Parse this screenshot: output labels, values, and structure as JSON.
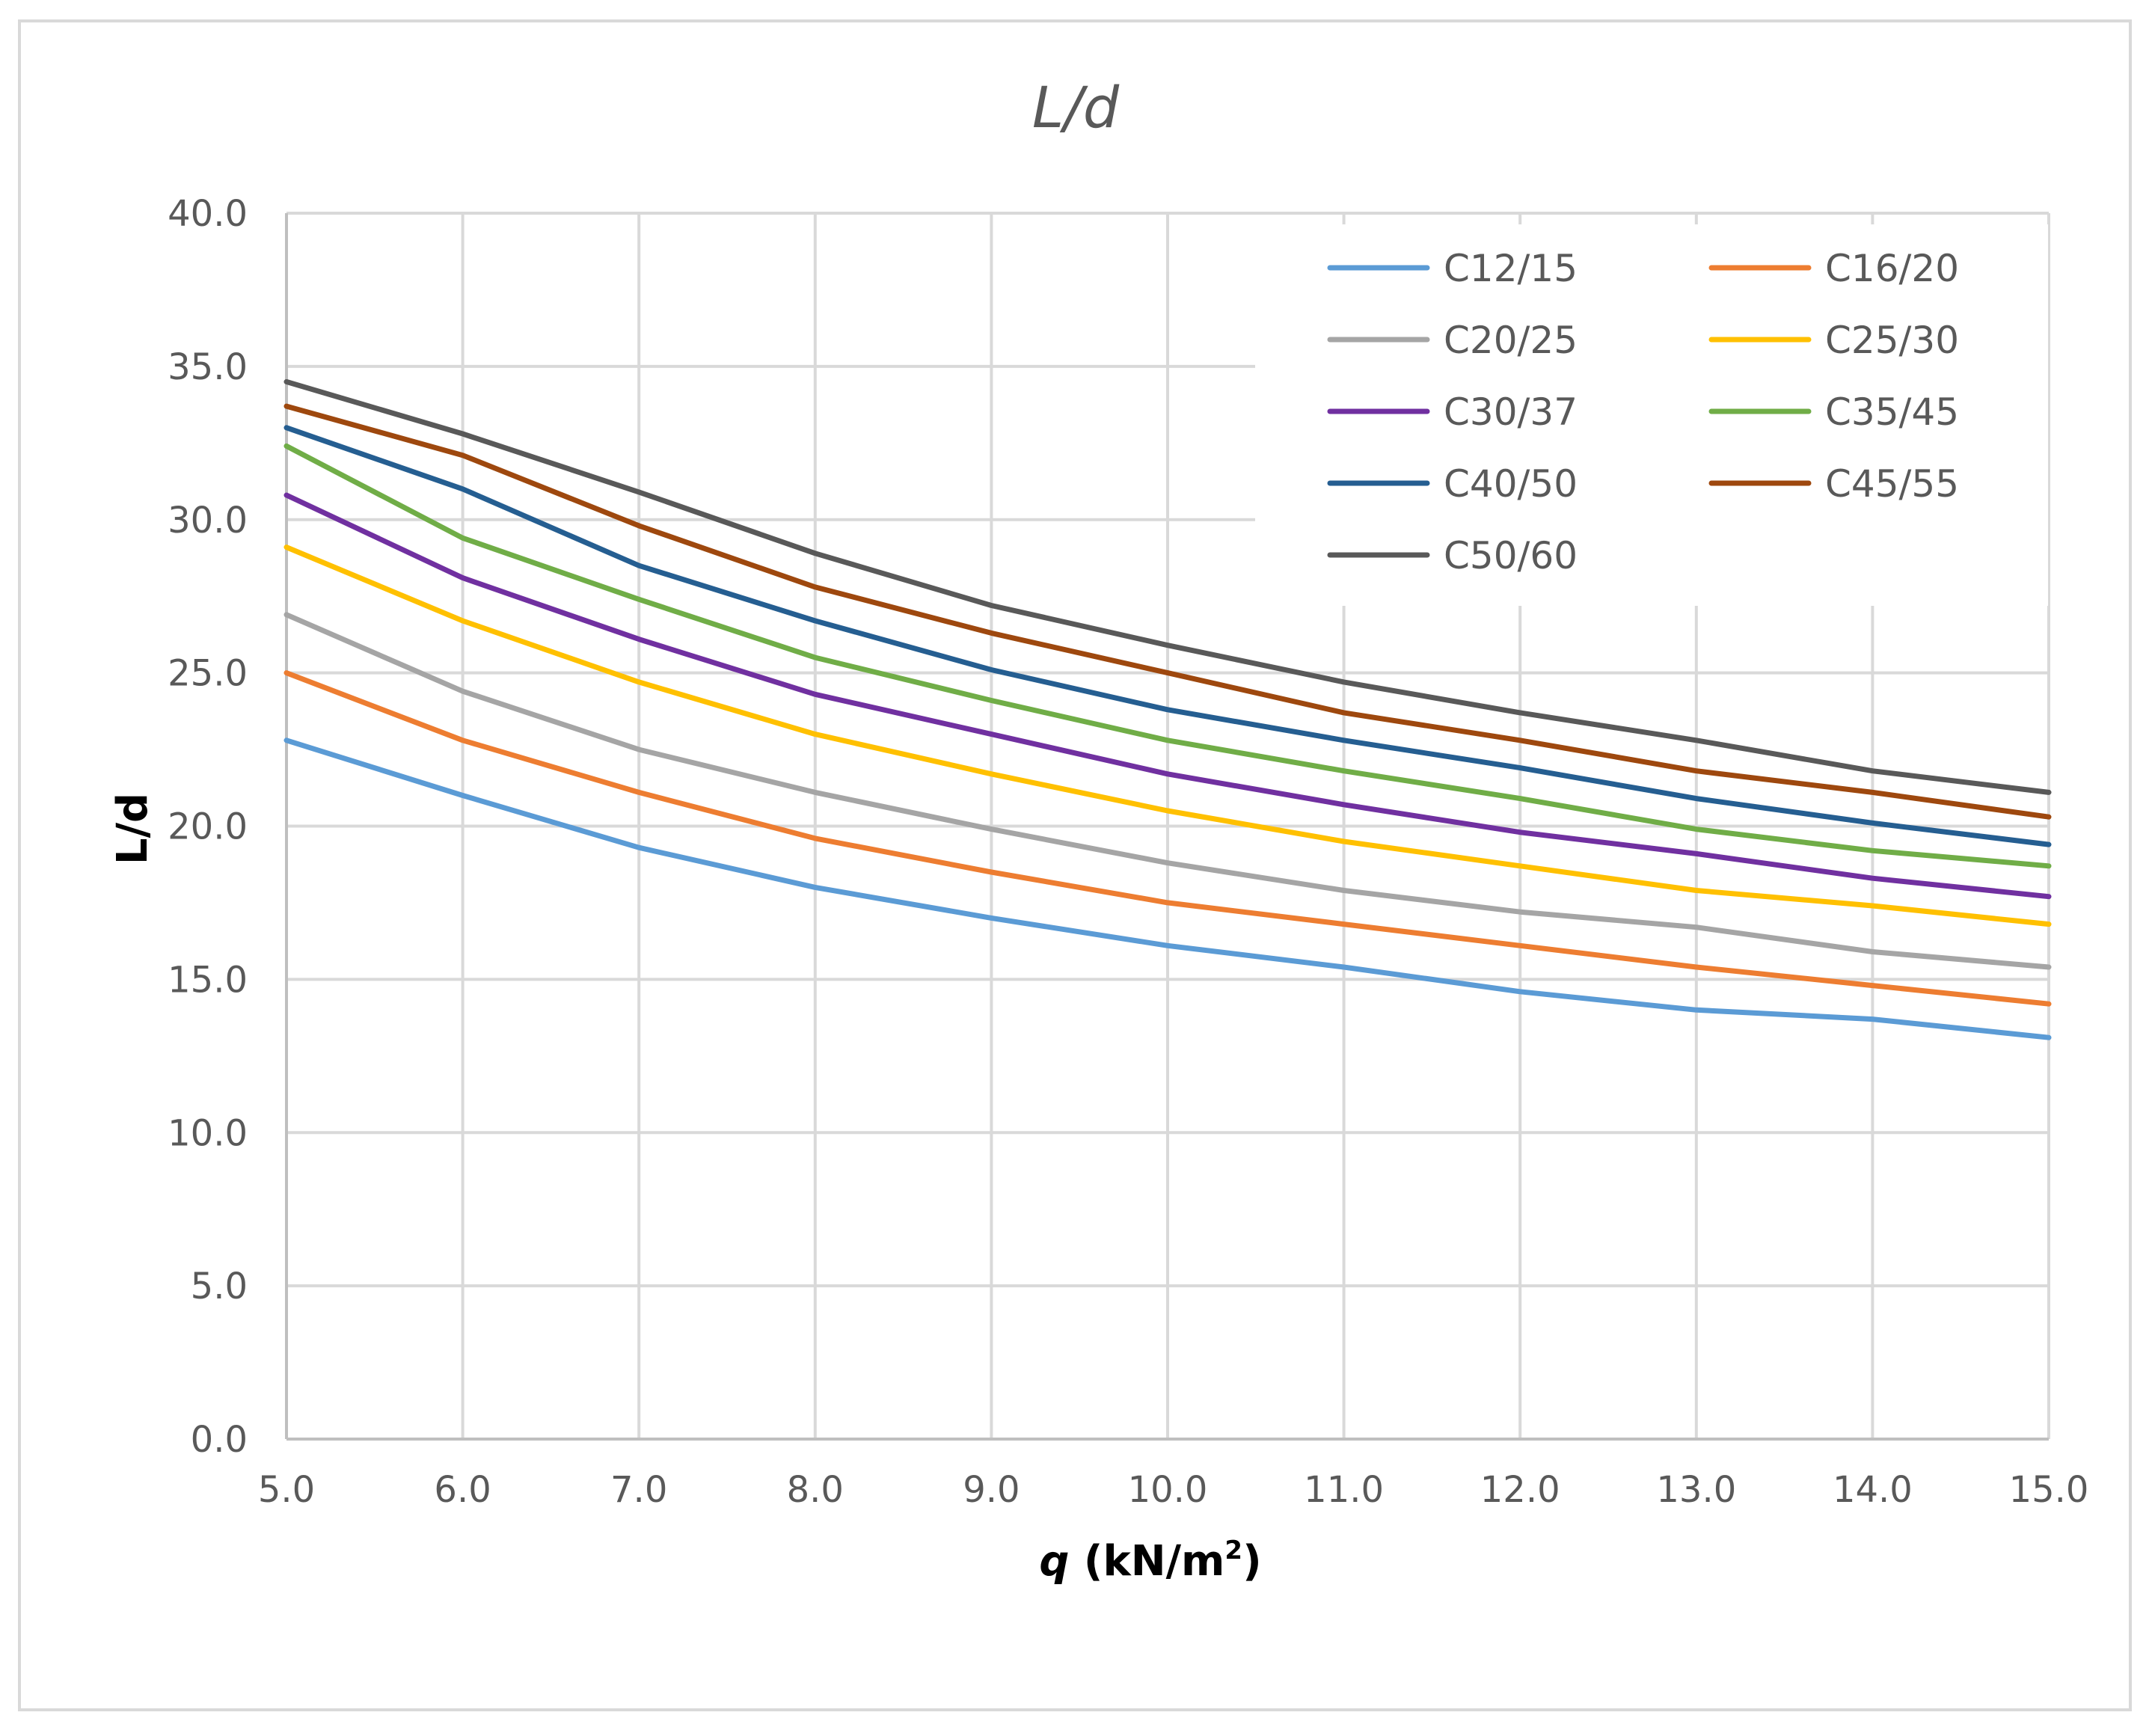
{
  "chart_data": {
    "type": "line",
    "title": "L/d",
    "xlabel": {
      "var": "q",
      "units": " (kN/m",
      "sup": "2",
      "close": ")"
    },
    "ylabel": "L/d",
    "xlim": [
      5,
      15
    ],
    "ylim": [
      0,
      40
    ],
    "x_ticks": [
      "5.0",
      "6.0",
      "7.0",
      "8.0",
      "9.0",
      "10.0",
      "11.0",
      "12.0",
      "13.0",
      "14.0",
      "15.0"
    ],
    "y_ticks": [
      "0.0",
      "5.0",
      "10.0",
      "15.0",
      "20.0",
      "25.0",
      "30.0",
      "35.0",
      "40.0"
    ],
    "x": [
      5,
      6,
      7,
      8,
      9,
      10,
      11,
      12,
      13,
      14,
      15
    ],
    "grid": true,
    "legend_position": "top-right",
    "series": [
      {
        "name": "C12/15",
        "color": "#5b9bd5",
        "values": [
          22.8,
          21.0,
          19.3,
          18.0,
          17.0,
          16.1,
          15.4,
          14.6,
          14.0,
          13.7,
          13.1
        ]
      },
      {
        "name": "C16/20",
        "color": "#ed7d31",
        "values": [
          25.0,
          22.8,
          21.1,
          19.6,
          18.5,
          17.5,
          16.8,
          16.1,
          15.4,
          14.8,
          14.2
        ]
      },
      {
        "name": "C20/25",
        "color": "#a5a5a5",
        "values": [
          26.9,
          24.4,
          22.5,
          21.1,
          19.9,
          18.8,
          17.9,
          17.2,
          16.7,
          15.9,
          15.4
        ]
      },
      {
        "name": "C25/30",
        "color": "#ffc000",
        "values": [
          29.1,
          26.7,
          24.7,
          23.0,
          21.7,
          20.5,
          19.5,
          18.7,
          17.9,
          17.4,
          16.8
        ]
      },
      {
        "name": "C30/37",
        "color": "#7030a0",
        "values": [
          30.8,
          28.1,
          26.1,
          24.3,
          23.0,
          21.7,
          20.7,
          19.8,
          19.1,
          18.3,
          17.7
        ]
      },
      {
        "name": "C35/45",
        "color": "#70ad47",
        "values": [
          32.4,
          29.4,
          27.4,
          25.5,
          24.1,
          22.8,
          21.8,
          20.9,
          19.9,
          19.2,
          18.7
        ]
      },
      {
        "name": "C40/50",
        "color": "#255e91",
        "values": [
          33.0,
          31.0,
          28.5,
          26.7,
          25.1,
          23.8,
          22.8,
          21.9,
          20.9,
          20.1,
          19.4
        ]
      },
      {
        "name": "C45/55",
        "color": "#9e480e",
        "values": [
          33.7,
          32.1,
          29.8,
          27.8,
          26.3,
          25.0,
          23.7,
          22.8,
          21.8,
          21.1,
          20.3
        ]
      },
      {
        "name": "C50/60",
        "color": "#595959",
        "values": [
          34.5,
          32.8,
          30.9,
          28.9,
          27.2,
          25.9,
          24.7,
          23.7,
          22.8,
          21.8,
          21.1
        ]
      }
    ]
  }
}
